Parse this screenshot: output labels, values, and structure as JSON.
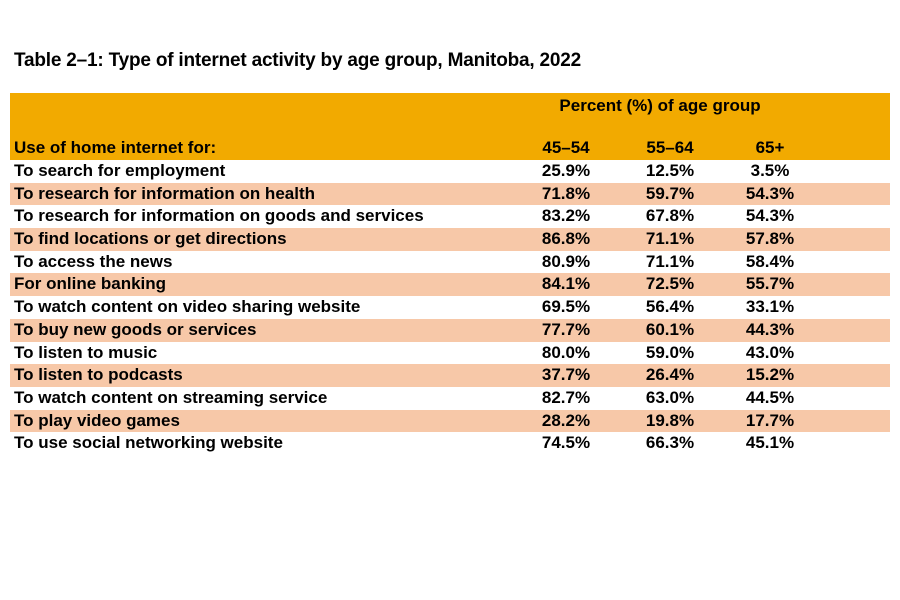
{
  "title": "Table 2–1: Type of internet activity by age group, Manitoba, 2022",
  "colors": {
    "header_bg": "#F2AA00",
    "stripe_bg": "#F7C8A8",
    "row_bg": "#FFFFFF"
  },
  "header": {
    "group_label": "Percent (%) of age group",
    "row_label": "Use of home internet for:",
    "columns": [
      "45–54",
      "55–64",
      "65+"
    ]
  },
  "rows": [
    {
      "label": "To search for employment",
      "values": [
        "25.9%",
        "12.5%",
        "3.5%"
      ]
    },
    {
      "label": "To research for information on health",
      "values": [
        "71.8%",
        "59.7%",
        "54.3%"
      ]
    },
    {
      "label": "To research for information on goods and services",
      "values": [
        "83.2%",
        "67.8%",
        "54.3%"
      ]
    },
    {
      "label": "To find locations or get directions",
      "values": [
        "86.8%",
        "71.1%",
        "57.8%"
      ]
    },
    {
      "label": "To access the news",
      "values": [
        "80.9%",
        "71.1%",
        "58.4%"
      ]
    },
    {
      "label": "For online banking",
      "values": [
        "84.1%",
        "72.5%",
        "55.7%"
      ]
    },
    {
      "label": "To watch content on video sharing website",
      "values": [
        "69.5%",
        "56.4%",
        "33.1%"
      ]
    },
    {
      "label": "To buy new goods or services",
      "values": [
        "77.7%",
        "60.1%",
        "44.3%"
      ]
    },
    {
      "label": "To listen to music",
      "values": [
        "80.0%",
        "59.0%",
        "43.0%"
      ]
    },
    {
      "label": "To listen to podcasts",
      "values": [
        "37.7%",
        "26.4%",
        "15.2%"
      ]
    },
    {
      "label": "To watch content on streaming service",
      "values": [
        "82.7%",
        "63.0%",
        "44.5%"
      ]
    },
    {
      "label": "To play video games",
      "values": [
        "28.2%",
        "19.8%",
        "17.7%"
      ]
    },
    {
      "label": "To use social networking website",
      "values": [
        "74.5%",
        "66.3%",
        "45.1%"
      ]
    }
  ]
}
